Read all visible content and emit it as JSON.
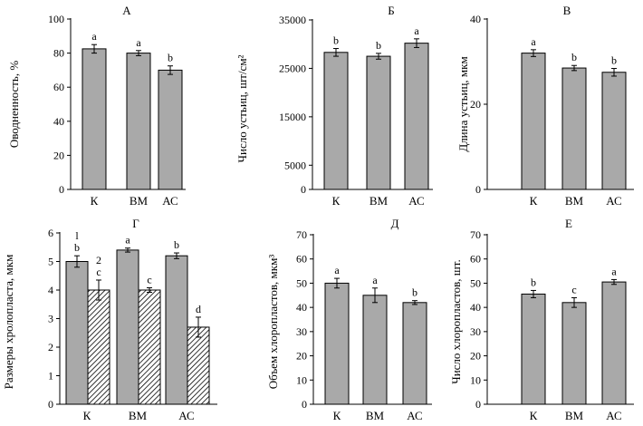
{
  "figure": {
    "background": "#ffffff",
    "bar_fill": "#a9a9a9",
    "stroke": "#000000"
  },
  "chart_data": [
    {
      "id": "A",
      "type": "bar",
      "title": "А",
      "ylabel": "Оводненность, %",
      "ylim": [
        0,
        100
      ],
      "yticks": [
        0,
        20,
        40,
        60,
        80,
        100
      ],
      "categories": [
        "К",
        "ВМ",
        "АС"
      ],
      "series": [
        {
          "name": "",
          "values": [
            82.5,
            80,
            70
          ],
          "errors": [
            2.5,
            1.5,
            2.5
          ],
          "letters": [
            "a",
            "a",
            "b"
          ],
          "pattern": "solid"
        }
      ]
    },
    {
      "id": "B",
      "type": "bar",
      "title": "Б",
      "ylabel": "Число устьиц, шт/см²",
      "ylim": [
        0,
        35000
      ],
      "yticks": [
        0,
        5000,
        15000,
        25000,
        35000
      ],
      "categories": [
        "К",
        "ВМ",
        "АС"
      ],
      "series": [
        {
          "name": "",
          "values": [
            28300,
            27500,
            30200
          ],
          "errors": [
            800,
            600,
            900
          ],
          "letters": [
            "b",
            "b",
            "a"
          ],
          "pattern": "solid"
        }
      ]
    },
    {
      "id": "C",
      "type": "bar",
      "title": "В",
      "ylabel": "Длина устьиц, мкм",
      "ylim": [
        0,
        40
      ],
      "yticks": [
        0,
        20,
        40
      ],
      "categories": [
        "К",
        "ВМ",
        "АС"
      ],
      "series": [
        {
          "name": "",
          "values": [
            32,
            28.5,
            27.5
          ],
          "errors": [
            0.8,
            0.6,
            0.9
          ],
          "letters": [
            "a",
            "b",
            "b"
          ],
          "pattern": "solid"
        }
      ]
    },
    {
      "id": "D",
      "type": "bar",
      "title": "Г",
      "ylabel": "Размеры хролопласта, мкм",
      "ylim": [
        0,
        6
      ],
      "yticks": [
        0,
        1,
        2,
        3,
        4,
        5,
        6
      ],
      "categories": [
        "К",
        "ВМ",
        "АС"
      ],
      "series_labels": [
        "l",
        "2"
      ],
      "series": [
        {
          "name": "1",
          "values": [
            5,
            5.4,
            5.2
          ],
          "errors": [
            0.2,
            0.07,
            0.1
          ],
          "letters": [
            "b",
            "a",
            "b"
          ],
          "pattern": "solid"
        },
        {
          "name": "2",
          "values": [
            4,
            4,
            2.7
          ],
          "errors": [
            0.35,
            0.08,
            0.35
          ],
          "letters": [
            "c",
            "c",
            "d"
          ],
          "pattern": "hatch"
        }
      ]
    },
    {
      "id": "E",
      "type": "bar",
      "title": "Д",
      "ylabel": "Объем хлоропластов, мкм³",
      "ylim": [
        0,
        70
      ],
      "yticks": [
        0,
        10,
        20,
        30,
        40,
        50,
        60,
        70
      ],
      "categories": [
        "К",
        "ВМ",
        "АС"
      ],
      "series": [
        {
          "name": "",
          "values": [
            50,
            45,
            42
          ],
          "errors": [
            2,
            3,
            0.8
          ],
          "letters": [
            "a",
            "a",
            "b"
          ],
          "pattern": "solid"
        }
      ]
    },
    {
      "id": "F",
      "type": "bar",
      "title": "Е",
      "ylabel": "Число хлоропластов, шт.",
      "ylim": [
        0,
        70
      ],
      "yticks": [
        0,
        10,
        20,
        30,
        40,
        50,
        60,
        70
      ],
      "categories": [
        "К",
        "ВМ",
        "АС"
      ],
      "series": [
        {
          "name": "",
          "values": [
            45.5,
            42,
            50.5
          ],
          "errors": [
            1.5,
            2,
            1
          ],
          "letters": [
            "b",
            "c",
            "a"
          ],
          "pattern": "solid"
        }
      ]
    }
  ]
}
